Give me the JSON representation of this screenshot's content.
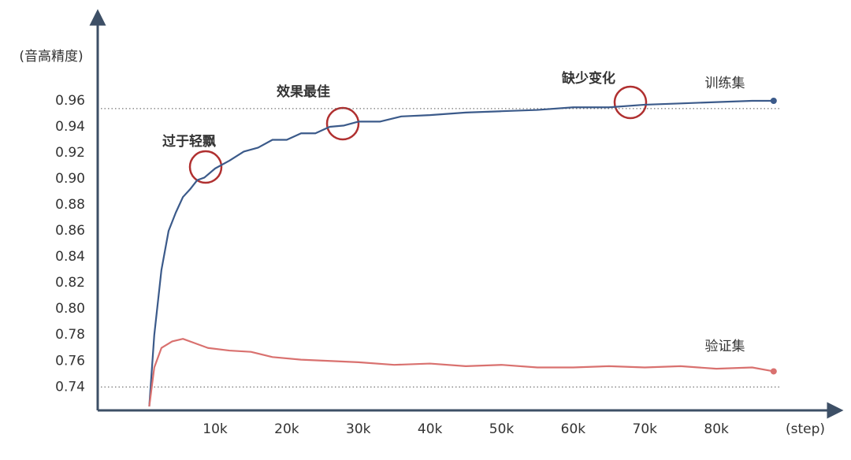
{
  "chart_data": {
    "type": "line",
    "y_label": "(音高精度)",
    "x_label": "(step)",
    "xlim": [
      -6.4,
      95.5
    ],
    "ylim": [
      0.722,
      1.026
    ],
    "xticks": [
      {
        "value": 10,
        "label": "10k"
      },
      {
        "value": 20,
        "label": "20k"
      },
      {
        "value": 30,
        "label": "30k"
      },
      {
        "value": 40,
        "label": "40k"
      },
      {
        "value": 50,
        "label": "50k"
      },
      {
        "value": 60,
        "label": "60k"
      },
      {
        "value": 70,
        "label": "70k"
      },
      {
        "value": 80,
        "label": "80k"
      }
    ],
    "yticks": [
      0.74,
      0.76,
      0.78,
      {
        "value": 0.8,
        "label": "0.80"
      },
      0.82,
      0.84,
      0.86,
      0.88,
      {
        "value": 0.9,
        "label": "0.90"
      },
      0.92,
      0.94,
      0.96
    ],
    "hlines": [
      0.954,
      0.74
    ],
    "annotations": [
      "过于轻飘",
      "效果最佳",
      "缺少变化"
    ],
    "series": [
      {
        "name": "训练集",
        "color": "#3b5a8a",
        "x": [
          0.8,
          1.5,
          2.5,
          3.5,
          4.5,
          5.5,
          6.5,
          7.5,
          8.5,
          10,
          12,
          14,
          16,
          18,
          20,
          22,
          24,
          26,
          28,
          30,
          33,
          36,
          40,
          45,
          50,
          55,
          60,
          65,
          70,
          75,
          80,
          85,
          88
        ],
        "values": [
          0.725,
          0.78,
          0.83,
          0.86,
          0.874,
          0.886,
          0.892,
          0.899,
          0.901,
          0.908,
          0.914,
          0.921,
          0.924,
          0.93,
          0.93,
          0.935,
          0.935,
          0.94,
          0.941,
          0.944,
          0.944,
          0.948,
          0.949,
          0.951,
          0.952,
          0.953,
          0.955,
          0.955,
          0.957,
          0.958,
          0.959,
          0.96,
          0.96
        ]
      },
      {
        "name": "验证集",
        "color": "#d9716f",
        "x": [
          0.8,
          1.5,
          2.5,
          4,
          5.5,
          7,
          9,
          12,
          15,
          18,
          22,
          26,
          30,
          35,
          40,
          45,
          50,
          55,
          60,
          65,
          70,
          75,
          80,
          85,
          88
        ],
        "values": [
          0.725,
          0.755,
          0.77,
          0.775,
          0.777,
          0.774,
          0.77,
          0.768,
          0.767,
          0.763,
          0.761,
          0.76,
          0.759,
          0.757,
          0.758,
          0.756,
          0.757,
          0.755,
          0.755,
          0.756,
          0.755,
          0.756,
          0.754,
          0.755,
          0.752
        ]
      }
    ]
  }
}
